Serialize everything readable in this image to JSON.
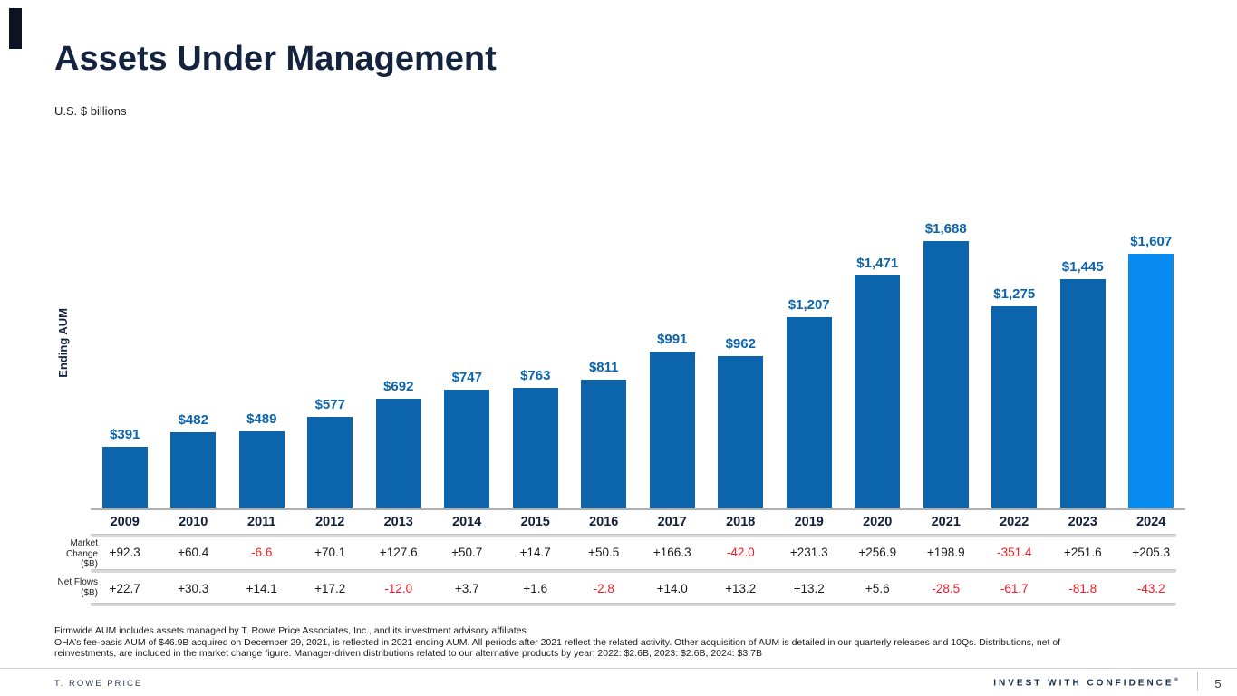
{
  "slide": {
    "title": "Assets Under Management",
    "subtitle": "U.S. $ billions"
  },
  "chart_data": {
    "type": "bar",
    "title": "Assets Under Management",
    "units_note": "U.S. $ billions",
    "ylabel": "Ending AUM",
    "xlabel": "",
    "ylim": [
      0,
      1800
    ],
    "grid": false,
    "legend": "none",
    "categories": [
      "2009",
      "2010",
      "2011",
      "2012",
      "2013",
      "2014",
      "2015",
      "2016",
      "2017",
      "2018",
      "2019",
      "2020",
      "2021",
      "2022",
      "2023",
      "2024"
    ],
    "series": [
      {
        "name": "Ending AUM ($B)",
        "values": [
          391,
          482,
          489,
          577,
          692,
          747,
          763,
          811,
          991,
          962,
          1207,
          1471,
          1688,
          1275,
          1445,
          1607
        ],
        "labels": [
          "$391",
          "$482",
          "$489",
          "$577",
          "$692",
          "$747",
          "$763",
          "$811",
          "$991",
          "$962",
          "$1,207",
          "$1,471",
          "$1,688",
          "$1,275",
          "$1,445",
          "$1,607"
        ]
      },
      {
        "name": "Market Change ($B)",
        "values": [
          "+92.3",
          "+60.4",
          "-6.6",
          "+70.1",
          "+127.6",
          "+50.7",
          "+14.7",
          "+50.5",
          "+166.3",
          "-42.0",
          "+231.3",
          "+256.9",
          "+198.9",
          "-351.4",
          "+251.6",
          "+205.3"
        ]
      },
      {
        "name": "Net Flows ($B)",
        "values": [
          "+22.7",
          "+30.3",
          "+14.1",
          "+17.2",
          "-12.0",
          "+3.7",
          "+1.6",
          "-2.8",
          "+14.0",
          "+13.2",
          "+13.2",
          "+5.6",
          "-28.5",
          "-61.7",
          "-81.8",
          "-43.2"
        ]
      }
    ],
    "highlight_category": "2024",
    "bar_color": "#0c64ad",
    "highlight_color": "#088bf0",
    "negative_value_color": "#ee1c25"
  },
  "table": {
    "rows": [
      {
        "label_lines": [
          "Market",
          "Change",
          "($B)"
        ]
      },
      {
        "label_lines": [
          "Net Flows",
          "($B)"
        ]
      }
    ]
  },
  "footnotes": {
    "lines": [
      "Firmwide AUM includes assets managed by T. Rowe Price Associates, Inc., and its investment advisory affiliates.",
      "OHA’s fee-basis AUM of $46.9B acquired on December 29, 2021, is reflected in 2021 ending AUM. All periods after 2021 reflect the related activity. Other acquisition of AUM is detailed in our quarterly releases and 10Qs. Distributions, net of",
      "reinvestments, are included in the market change figure. Manager-driven distributions related to our alternative products by year: 2022: $2.6B, 2023: $2.6B, 2024: $3.7B"
    ]
  },
  "footer": {
    "brand": "T. ROWE PRICE",
    "tagline": "INVEST WITH CONFIDENCE",
    "tagline_reg": "®",
    "page_number": "5"
  }
}
